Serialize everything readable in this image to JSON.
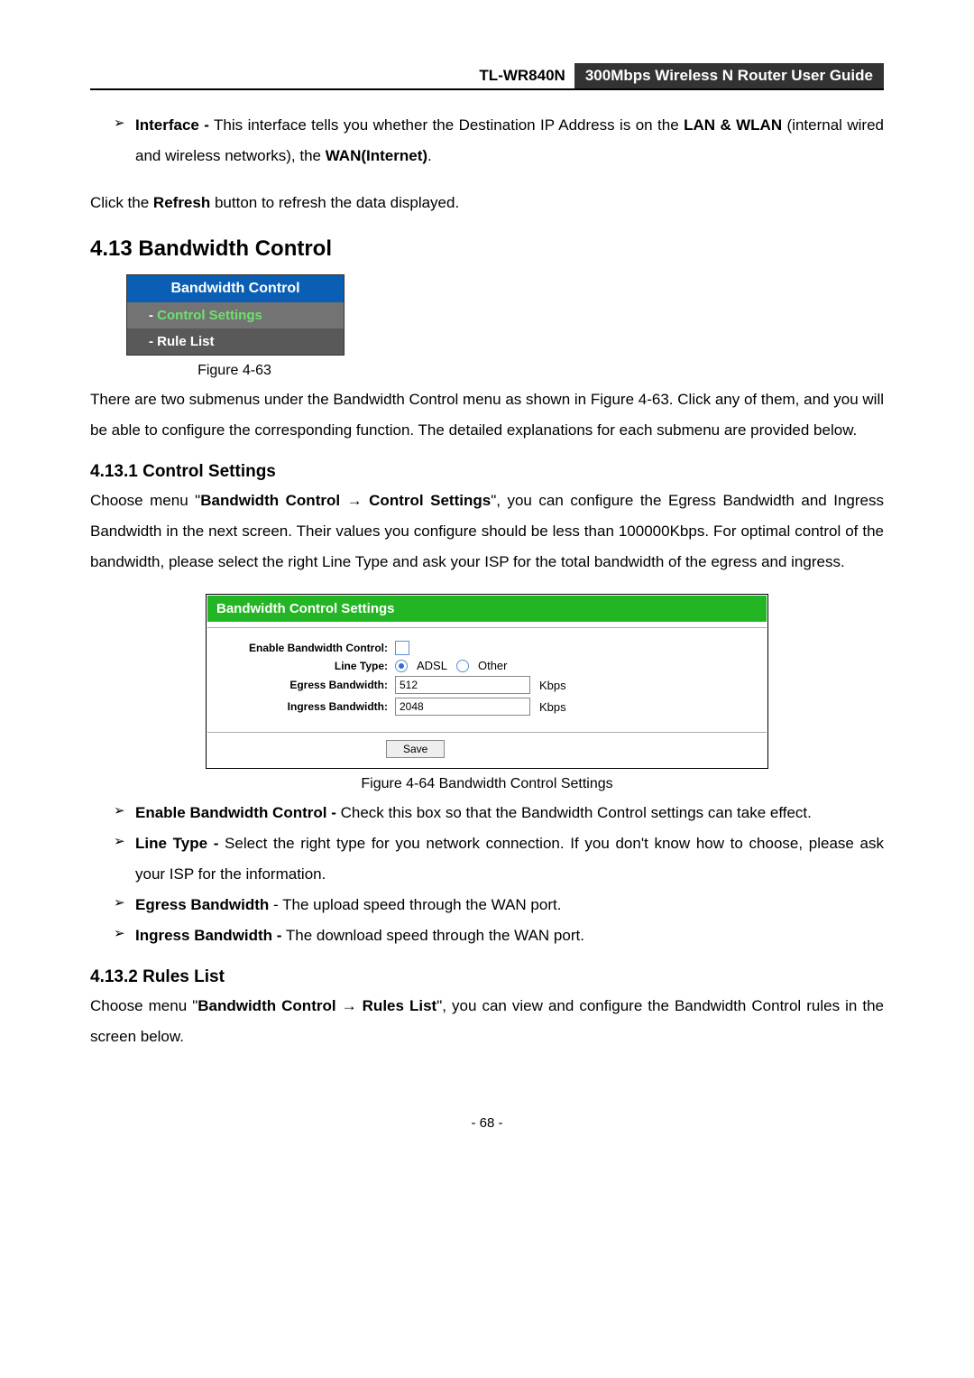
{
  "header": {
    "model": "TL-WR840N",
    "title": "300Mbps Wireless N Router User Guide"
  },
  "intro_bullet": {
    "term": "Interface -",
    "text_a": " This interface tells you whether the Destination IP Address is on the ",
    "lanwlan": "LAN & WLAN",
    "text_b": " (internal wired and wireless networks), the ",
    "wan": "WAN(Internet)",
    "text_c": "."
  },
  "refresh_line": {
    "a": "Click the ",
    "b": "Refresh",
    "c": " button to refresh the data displayed."
  },
  "section": {
    "num_title": "4.13  Bandwidth Control"
  },
  "menu": {
    "title": "Bandwidth Control",
    "item_active": "Control Settings",
    "item2": "Rule List",
    "caption": "Figure 4-63"
  },
  "menu_para": "There are two submenus under the Bandwidth Control menu as shown in Figure 4-63. Click any of them, and you will be able to configure the corresponding function. The detailed explanations for each submenu are provided below.",
  "cs": {
    "heading": "4.13.1 Control Settings",
    "p_a": "Choose menu \"",
    "p_b": "Bandwidth Control",
    "p_arrow": " → ",
    "p_c": "Control Settings",
    "p_d": "\", you can configure the Egress Bandwidth and Ingress Bandwidth in the next screen. Their values you configure should be less than 100000Kbps. For optimal control of the bandwidth, please select the right Line Type and ask your ISP for the total bandwidth of the egress and ingress."
  },
  "panel": {
    "title": "Bandwidth Control Settings",
    "labels": {
      "enable": "Enable Bandwidth Control:",
      "line": "Line Type:",
      "egress": "Egress Bandwidth:",
      "ingress": "Ingress Bandwidth:"
    },
    "radio1": "ADSL",
    "radio2": "Other",
    "egress_val": "512",
    "ingress_val": "2048",
    "unit": "Kbps",
    "save": "Save",
    "caption": "Figure 4-64 Bandwidth Control Settings"
  },
  "bullets": {
    "b1_term": "Enable Bandwidth Control -",
    "b1_text": " Check this box so that the Bandwidth Control settings can take effect.",
    "b2_term": "Line Type -",
    "b2_text": " Select the right type for you network connection. If you don't know how to choose, please ask your ISP for the information.",
    "b3_term": "Egress Bandwidth",
    "b3_text": " - The upload speed through the WAN port.",
    "b4_term": "Ingress Bandwidth -",
    "b4_text": " The download speed through the WAN port."
  },
  "rl": {
    "heading": "4.13.2 Rules List",
    "p_a": "Choose menu \"",
    "p_b": "Bandwidth Control",
    "p_arrow": " → ",
    "p_c": "Rules List",
    "p_d": "\", you can view and configure the Bandwidth Control rules in the screen below."
  },
  "page_num": "- 68 -"
}
